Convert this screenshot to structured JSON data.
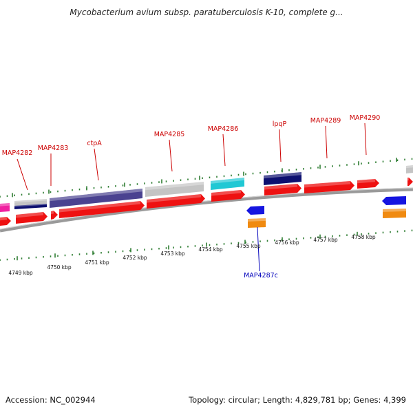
{
  "title": "Mycobacterium avium subsp. paratuberculosis K-10, complete g...",
  "footer": {
    "accession": "Accession: NC_002944",
    "stats": "Topology: circular; Length: 4,829,781 bp; Genes: 4,399"
  },
  "gene_labels": {
    "forward": [
      "MAP4282",
      "MAP4283",
      "ctpA",
      "MAP4285",
      "MAP4286",
      "lpqP",
      "MAP4289",
      "MAP4290"
    ],
    "reverse": [
      "MAP4287c"
    ]
  },
  "kbp_labels": [
    "4749 kbp",
    "4750 kbp",
    "4751 kbp",
    "4752 kbp",
    "4753 kbp",
    "4754 kbp",
    "4755 kbp",
    "4756 kbp",
    "4757 kbp",
    "4758 kbp"
  ],
  "colors": {
    "forward_label": "#cc0000",
    "reverse_label": "#0000bb",
    "cds": "#ee1111",
    "backbone": "#8a8a8a",
    "tick": "#2e7d32",
    "navy": "#0d1070",
    "slate": "#4a4290",
    "gray": "#c4c4c4",
    "cyan": "#20c8d4",
    "blue": "#1515e0",
    "orange": "#f08a10",
    "magenta": "#f020a0"
  }
}
